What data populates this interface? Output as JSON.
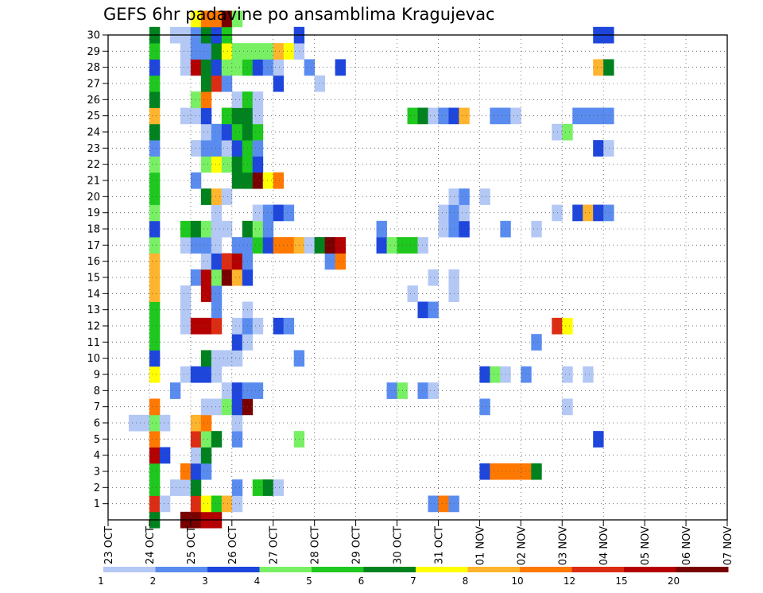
{
  "chart_data": {
    "type": "heatmap",
    "title": "GEFS 6hr padavine po ansamblima Kragujevac",
    "x_tick_labels": [
      "23 OCT",
      "24 OCT",
      "25 OCT",
      "26 OCT",
      "27 OCT",
      "28 OCT",
      "29 OCT",
      "30 OCT",
      "31 OCT",
      "01 NOV",
      "02 NOV",
      "03 NOV",
      "04 NOV",
      "05 NOV",
      "06 NOV",
      "07 NOV"
    ],
    "x_step": "6hr",
    "y_tick_labels": [
      "1",
      "2",
      "3",
      "4",
      "5",
      "6",
      "7",
      "8",
      "9",
      "10",
      "11",
      "12",
      "13",
      "14",
      "15",
      "16",
      "17",
      "18",
      "19",
      "20",
      "21",
      "22",
      "23",
      "24",
      "25",
      "26",
      "27",
      "28",
      "29",
      "30"
    ],
    "ylim": [
      0,
      30
    ],
    "grid": true,
    "legend": {
      "placement": "bottom",
      "labels": [
        "1",
        "2",
        "3",
        "4",
        "5",
        "6",
        "7",
        "8",
        "10",
        "12",
        "15",
        "20"
      ],
      "colors": [
        "#b4c8f5",
        "#5a8cf0",
        "#1e46dc",
        "#78f064",
        "#1ec81e",
        "#00821e",
        "#ffff00",
        "#ffb42d",
        "#ff7800",
        "#dc2d14",
        "#b40000",
        "#780000"
      ]
    },
    "cells": [
      [
        0,
        4,
        6
      ],
      [
        0,
        7,
        12
      ],
      [
        0,
        8,
        12
      ],
      [
        0,
        9,
        11
      ],
      [
        0,
        10,
        11
      ],
      [
        1,
        4,
        10
      ],
      [
        1,
        5,
        1
      ],
      [
        1,
        8,
        10
      ],
      [
        1,
        9,
        7
      ],
      [
        1,
        10,
        5
      ],
      [
        1,
        11,
        8
      ],
      [
        1,
        12,
        1
      ],
      [
        1,
        31,
        2
      ],
      [
        1,
        32,
        9
      ],
      [
        1,
        33,
        2
      ],
      [
        2,
        4,
        5
      ],
      [
        2,
        6,
        1
      ],
      [
        2,
        7,
        1
      ],
      [
        2,
        8,
        6
      ],
      [
        2,
        12,
        2
      ],
      [
        2,
        14,
        5
      ],
      [
        2,
        15,
        6
      ],
      [
        2,
        16,
        1
      ],
      [
        3,
        4,
        5
      ],
      [
        3,
        7,
        9
      ],
      [
        3,
        8,
        3
      ],
      [
        3,
        9,
        2
      ],
      [
        3,
        36,
        3
      ],
      [
        3,
        37,
        9
      ],
      [
        3,
        38,
        9
      ],
      [
        3,
        39,
        9
      ],
      [
        3,
        40,
        9
      ],
      [
        3,
        41,
        6
      ],
      [
        4,
        4,
        11
      ],
      [
        4,
        5,
        3
      ],
      [
        4,
        8,
        1
      ],
      [
        4,
        9,
        6
      ],
      [
        5,
        4,
        9
      ],
      [
        5,
        8,
        10
      ],
      [
        5,
        9,
        4
      ],
      [
        5,
        10,
        6
      ],
      [
        5,
        12,
        2
      ],
      [
        5,
        18,
        4
      ],
      [
        5,
        47,
        3
      ],
      [
        6,
        2,
        1
      ],
      [
        6,
        3,
        1
      ],
      [
        6,
        4,
        4
      ],
      [
        6,
        5,
        1
      ],
      [
        6,
        8,
        8
      ],
      [
        6,
        9,
        9
      ],
      [
        6,
        12,
        1
      ],
      [
        7,
        4,
        9
      ],
      [
        7,
        9,
        1
      ],
      [
        7,
        10,
        1
      ],
      [
        7,
        11,
        4
      ],
      [
        7,
        12,
        3
      ],
      [
        7,
        13,
        12
      ],
      [
        7,
        36,
        2
      ],
      [
        7,
        44,
        1
      ],
      [
        8,
        6,
        2
      ],
      [
        8,
        11,
        1
      ],
      [
        8,
        12,
        3
      ],
      [
        8,
        13,
        2
      ],
      [
        8,
        14,
        2
      ],
      [
        8,
        27,
        2
      ],
      [
        8,
        28,
        4
      ],
      [
        8,
        30,
        2
      ],
      [
        8,
        31,
        1
      ],
      [
        9,
        4,
        7
      ],
      [
        9,
        7,
        1
      ],
      [
        9,
        8,
        3
      ],
      [
        9,
        9,
        3
      ],
      [
        9,
        10,
        1
      ],
      [
        9,
        36,
        3
      ],
      [
        9,
        37,
        4
      ],
      [
        9,
        38,
        1
      ],
      [
        9,
        40,
        2
      ],
      [
        9,
        44,
        1
      ],
      [
        9,
        46,
        1
      ],
      [
        10,
        4,
        3
      ],
      [
        10,
        9,
        6
      ],
      [
        10,
        10,
        1
      ],
      [
        10,
        11,
        1
      ],
      [
        10,
        12,
        1
      ],
      [
        10,
        18,
        2
      ],
      [
        11,
        4,
        5
      ],
      [
        11,
        12,
        3
      ],
      [
        11,
        13,
        1
      ],
      [
        11,
        41,
        2
      ],
      [
        12,
        4,
        5
      ],
      [
        12,
        7,
        1
      ],
      [
        12,
        8,
        11
      ],
      [
        12,
        9,
        11
      ],
      [
        12,
        10,
        10
      ],
      [
        12,
        12,
        1
      ],
      [
        12,
        13,
        2
      ],
      [
        12,
        14,
        1
      ],
      [
        12,
        16,
        3
      ],
      [
        12,
        17,
        2
      ],
      [
        12,
        43,
        10
      ],
      [
        12,
        44,
        7
      ],
      [
        13,
        4,
        5
      ],
      [
        13,
        7,
        1
      ],
      [
        13,
        10,
        2
      ],
      [
        13,
        13,
        1
      ],
      [
        13,
        30,
        3
      ],
      [
        13,
        31,
        2
      ],
      [
        14,
        4,
        8
      ],
      [
        14,
        7,
        1
      ],
      [
        14,
        9,
        11
      ],
      [
        14,
        10,
        2
      ],
      [
        14,
        29,
        1
      ],
      [
        14,
        33,
        1
      ],
      [
        15,
        4,
        8
      ],
      [
        15,
        8,
        2
      ],
      [
        15,
        9,
        11
      ],
      [
        15,
        10,
        4
      ],
      [
        15,
        11,
        12
      ],
      [
        15,
        12,
        8
      ],
      [
        15,
        13,
        3
      ],
      [
        15,
        31,
        1
      ],
      [
        15,
        33,
        1
      ],
      [
        16,
        4,
        8
      ],
      [
        16,
        9,
        1
      ],
      [
        16,
        10,
        3
      ],
      [
        16,
        11,
        10
      ],
      [
        16,
        12,
        11
      ],
      [
        16,
        13,
        2
      ],
      [
        16,
        21,
        2
      ],
      [
        16,
        22,
        9
      ],
      [
        17,
        4,
        4
      ],
      [
        17,
        7,
        1
      ],
      [
        17,
        8,
        2
      ],
      [
        17,
        9,
        2
      ],
      [
        17,
        10,
        1
      ],
      [
        17,
        12,
        2
      ],
      [
        17,
        13,
        2
      ],
      [
        17,
        14,
        5
      ],
      [
        17,
        15,
        3
      ],
      [
        17,
        16,
        9
      ],
      [
        17,
        17,
        9
      ],
      [
        17,
        18,
        8
      ],
      [
        17,
        19,
        1
      ],
      [
        17,
        20,
        6
      ],
      [
        17,
        21,
        12
      ],
      [
        17,
        22,
        11
      ],
      [
        17,
        26,
        3
      ],
      [
        17,
        27,
        4
      ],
      [
        17,
        28,
        5
      ],
      [
        17,
        29,
        5
      ],
      [
        17,
        30,
        1
      ],
      [
        18,
        4,
        3
      ],
      [
        18,
        7,
        5
      ],
      [
        18,
        8,
        6
      ],
      [
        18,
        9,
        4
      ],
      [
        18,
        10,
        1
      ],
      [
        18,
        11,
        1
      ],
      [
        18,
        13,
        6
      ],
      [
        18,
        14,
        4
      ],
      [
        18,
        15,
        2
      ],
      [
        18,
        26,
        2
      ],
      [
        18,
        32,
        1
      ],
      [
        18,
        33,
        2
      ],
      [
        18,
        34,
        3
      ],
      [
        18,
        38,
        2
      ],
      [
        18,
        41,
        1
      ],
      [
        19,
        4,
        4
      ],
      [
        19,
        10,
        1
      ],
      [
        19,
        14,
        1
      ],
      [
        19,
        15,
        2
      ],
      [
        19,
        16,
        3
      ],
      [
        19,
        17,
        2
      ],
      [
        19,
        32,
        1
      ],
      [
        19,
        33,
        2
      ],
      [
        19,
        34,
        1
      ],
      [
        19,
        43,
        1
      ],
      [
        19,
        45,
        3
      ],
      [
        19,
        46,
        8
      ],
      [
        19,
        47,
        3
      ],
      [
        19,
        48,
        2
      ],
      [
        20,
        4,
        5
      ],
      [
        20,
        9,
        6
      ],
      [
        20,
        10,
        8
      ],
      [
        20,
        11,
        1
      ],
      [
        20,
        33,
        1
      ],
      [
        20,
        34,
        2
      ],
      [
        20,
        36,
        1
      ],
      [
        21,
        4,
        5
      ],
      [
        21,
        8,
        2
      ],
      [
        21,
        12,
        6
      ],
      [
        21,
        13,
        6
      ],
      [
        21,
        14,
        12
      ],
      [
        21,
        15,
        7
      ],
      [
        21,
        16,
        9
      ],
      [
        22,
        4,
        4
      ],
      [
        22,
        9,
        4
      ],
      [
        22,
        10,
        7
      ],
      [
        22,
        11,
        4
      ],
      [
        22,
        12,
        6
      ],
      [
        22,
        13,
        5
      ],
      [
        22,
        14,
        3
      ],
      [
        23,
        4,
        2
      ],
      [
        23,
        8,
        1
      ],
      [
        23,
        9,
        2
      ],
      [
        23,
        10,
        2
      ],
      [
        23,
        11,
        1
      ],
      [
        23,
        12,
        3
      ],
      [
        23,
        13,
        5
      ],
      [
        23,
        14,
        2
      ],
      [
        23,
        47,
        3
      ],
      [
        23,
        48,
        1
      ],
      [
        24,
        4,
        6
      ],
      [
        24,
        9,
        1
      ],
      [
        24,
        10,
        2
      ],
      [
        24,
        11,
        3
      ],
      [
        24,
        12,
        5
      ],
      [
        24,
        13,
        6
      ],
      [
        24,
        14,
        5
      ],
      [
        24,
        43,
        1
      ],
      [
        24,
        44,
        4
      ],
      [
        25,
        4,
        8
      ],
      [
        25,
        7,
        1
      ],
      [
        25,
        8,
        1
      ],
      [
        25,
        9,
        3
      ],
      [
        25,
        11,
        5
      ],
      [
        25,
        12,
        6
      ],
      [
        25,
        13,
        6
      ],
      [
        25,
        14,
        1
      ],
      [
        25,
        29,
        5
      ],
      [
        25,
        30,
        6
      ],
      [
        25,
        31,
        1
      ],
      [
        25,
        32,
        2
      ],
      [
        25,
        33,
        3
      ],
      [
        25,
        34,
        8
      ],
      [
        25,
        37,
        2
      ],
      [
        25,
        38,
        2
      ],
      [
        25,
        39,
        1
      ],
      [
        25,
        45,
        2
      ],
      [
        25,
        46,
        2
      ],
      [
        25,
        47,
        2
      ],
      [
        25,
        48,
        2
      ],
      [
        26,
        4,
        6
      ],
      [
        26,
        8,
        4
      ],
      [
        26,
        9,
        9
      ],
      [
        26,
        12,
        1
      ],
      [
        26,
        13,
        5
      ],
      [
        26,
        14,
        1
      ],
      [
        27,
        4,
        5
      ],
      [
        27,
        9,
        6
      ],
      [
        27,
        10,
        10
      ],
      [
        27,
        11,
        2
      ],
      [
        27,
        16,
        3
      ],
      [
        27,
        20,
        1
      ],
      [
        28,
        4,
        3
      ],
      [
        28,
        7,
        1
      ],
      [
        28,
        8,
        11
      ],
      [
        28,
        9,
        6
      ],
      [
        28,
        10,
        3
      ],
      [
        28,
        11,
        4
      ],
      [
        28,
        12,
        4
      ],
      [
        28,
        13,
        5
      ],
      [
        28,
        14,
        3
      ],
      [
        28,
        15,
        2
      ],
      [
        28,
        16,
        1
      ],
      [
        28,
        19,
        2
      ],
      [
        28,
        22,
        3
      ],
      [
        28,
        47,
        8
      ],
      [
        28,
        48,
        6
      ],
      [
        29,
        4,
        5
      ],
      [
        29,
        7,
        1
      ],
      [
        29,
        8,
        2
      ],
      [
        29,
        9,
        2
      ],
      [
        29,
        10,
        6
      ],
      [
        29,
        11,
        7
      ],
      [
        29,
        12,
        4
      ],
      [
        29,
        13,
        4
      ],
      [
        29,
        14,
        4
      ],
      [
        29,
        15,
        4
      ],
      [
        29,
        16,
        8
      ],
      [
        29,
        17,
        7
      ],
      [
        29,
        18,
        1
      ],
      [
        30,
        4,
        6
      ],
      [
        30,
        6,
        1
      ],
      [
        30,
        7,
        1
      ],
      [
        30,
        8,
        2
      ],
      [
        30,
        9,
        6
      ],
      [
        30,
        10,
        3
      ],
      [
        30,
        11,
        5
      ],
      [
        30,
        18,
        3
      ],
      [
        30,
        47,
        3
      ],
      [
        30,
        48,
        3
      ],
      [
        31,
        8,
        7
      ],
      [
        31,
        9,
        9
      ],
      [
        31,
        10,
        9
      ],
      [
        31,
        11,
        12
      ],
      [
        31,
        12,
        4
      ]
    ]
  }
}
